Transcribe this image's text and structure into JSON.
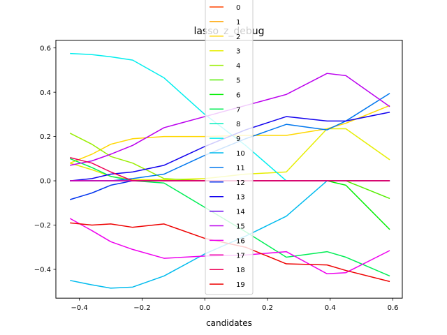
{
  "chart_data": {
    "type": "line",
    "title": "lasso_z_debug",
    "xlabel": "candidates",
    "ylabel": "",
    "xlim": [
      -0.475,
      0.63
    ],
    "ylim": [
      -0.53,
      0.635
    ],
    "xticks": [
      -0.4,
      -0.2,
      0.0,
      0.2,
      0.4,
      0.6
    ],
    "xtick_labels": [
      "−0.4",
      "−0.2",
      "0.0",
      "0.2",
      "0.4",
      "0.6"
    ],
    "yticks": [
      -0.4,
      -0.2,
      0.0,
      0.2,
      0.4,
      0.6
    ],
    "ytick_labels": [
      "−0.4",
      "−0.2",
      "0.0",
      "0.2",
      "0.4",
      "0.6"
    ],
    "grid": false,
    "legend_position": "top-center",
    "x": [
      -0.43,
      -0.36,
      -0.3,
      -0.23,
      -0.13,
      0.0,
      0.13,
      0.26,
      0.39,
      0.45,
      0.59
    ],
    "series": [
      {
        "name": "0",
        "color": "#ff4500",
        "values": [
          0,
          0,
          0,
          0,
          0,
          0,
          0,
          0,
          0,
          0,
          0
        ]
      },
      {
        "name": "1",
        "color": "#ffa500",
        "values": [
          0,
          0,
          0,
          0,
          0,
          0,
          0,
          0,
          0,
          0,
          0
        ]
      },
      {
        "name": "2",
        "color": "#ffd700",
        "values": [
          0.08,
          0.12,
          0.165,
          0.19,
          0.2,
          0.2,
          0.205,
          0.205,
          0.235,
          0.26,
          0.34
        ]
      },
      {
        "name": "3",
        "color": "#e6ee00",
        "values": [
          0.08,
          0.05,
          0.02,
          0.005,
          0.005,
          0.01,
          0.03,
          0.04,
          0.235,
          0.235,
          0.095
        ]
      },
      {
        "name": "4",
        "color": "#99ee00",
        "values": [
          0.215,
          0.165,
          0.11,
          0.08,
          0.01,
          0.0,
          0.0,
          0.0,
          0.0,
          0.0,
          0.0
        ]
      },
      {
        "name": "5",
        "color": "#55ee00",
        "values": [
          0,
          0,
          0,
          0,
          0,
          0,
          0,
          0,
          0,
          0.0,
          -0.08
        ]
      },
      {
        "name": "6",
        "color": "#00ee00",
        "values": [
          0,
          0,
          0,
          0,
          0,
          0,
          0,
          0,
          0.0,
          -0.02,
          -0.22
        ]
      },
      {
        "name": "7",
        "color": "#00ee55",
        "values": [
          0.1,
          0.06,
          0.02,
          0.0,
          -0.01,
          -0.12,
          -0.23,
          -0.345,
          -0.32,
          -0.345,
          -0.43
        ]
      },
      {
        "name": "8",
        "color": "#00eebb",
        "values": [
          0,
          0,
          0,
          0,
          0,
          0,
          0,
          0,
          0,
          0,
          0
        ]
      },
      {
        "name": "9",
        "color": "#00eeee",
        "values": [
          0.575,
          0.57,
          0.56,
          0.545,
          0.465,
          0.3,
          0.16,
          0.0,
          0.0,
          0.0,
          0.0
        ]
      },
      {
        "name": "10",
        "color": "#00bbee",
        "values": [
          -0.45,
          -0.47,
          -0.485,
          -0.48,
          -0.43,
          -0.33,
          -0.25,
          -0.16,
          0.0,
          0.0,
          0.0
        ]
      },
      {
        "name": "11",
        "color": "#0077ee",
        "values": [
          0.0,
          0.0,
          0.0,
          0.01,
          0.03,
          0.115,
          0.19,
          0.255,
          0.23,
          0.27,
          0.395
        ]
      },
      {
        "name": "12",
        "color": "#0033ee",
        "values": [
          -0.085,
          -0.055,
          -0.02,
          0.0,
          0.0,
          0.0,
          0.0,
          0.0,
          0.0,
          0.0,
          0.0
        ]
      },
      {
        "name": "13",
        "color": "#1100ee",
        "values": [
          0.0,
          0.01,
          0.03,
          0.04,
          0.07,
          0.155,
          0.23,
          0.29,
          0.27,
          0.27,
          0.31
        ]
      },
      {
        "name": "14",
        "color": "#6600ee",
        "values": [
          0,
          0,
          0,
          0,
          0,
          0,
          0,
          0,
          0,
          0,
          0
        ]
      },
      {
        "name": "15",
        "color": "#bb00ee",
        "values": [
          0.07,
          0.09,
          0.12,
          0.16,
          0.24,
          0.29,
          0.34,
          0.39,
          0.485,
          0.475,
          0.335
        ]
      },
      {
        "name": "16",
        "color": "#ee00ee",
        "values": [
          -0.17,
          -0.225,
          -0.275,
          -0.31,
          -0.35,
          -0.34,
          -0.335,
          -0.32,
          -0.42,
          -0.415,
          -0.315
        ]
      },
      {
        "name": "17",
        "color": "#ee00aa",
        "values": [
          0,
          0,
          0,
          0,
          0,
          0,
          0,
          0,
          0,
          0,
          0
        ]
      },
      {
        "name": "18",
        "color": "#ee0055",
        "values": [
          0.105,
          0.08,
          0.04,
          0.0,
          0.0,
          0.0,
          0.0,
          0.0,
          0.0,
          0.0,
          0.0
        ]
      },
      {
        "name": "19",
        "color": "#ee0000",
        "values": [
          -0.19,
          -0.2,
          -0.195,
          -0.21,
          -0.195,
          -0.26,
          -0.3,
          -0.375,
          -0.38,
          -0.405,
          -0.455
        ]
      }
    ]
  }
}
